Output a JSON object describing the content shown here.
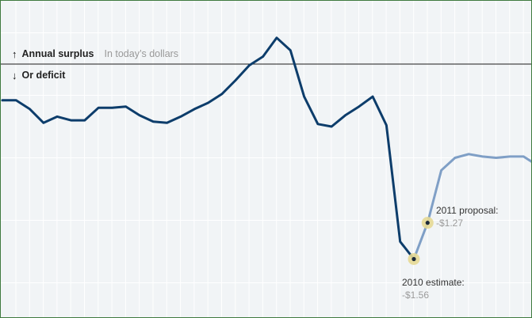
{
  "legend": {
    "up_arrow": "↑",
    "surplus_label": "Annual surplus",
    "units_note": "In today’s dollars",
    "down_arrow": "↓",
    "deficit_label": "Or deficit"
  },
  "chart_data": {
    "type": "line",
    "title": "",
    "xlabel": "",
    "ylabel": "",
    "grid": true,
    "ylim": [
      -1.65,
      0.65
    ],
    "series": [
      {
        "status": "actual",
        "color": "#0d3d6b",
        "x": [
          0,
          1,
          2,
          3,
          4,
          5,
          6,
          7,
          8,
          9,
          10,
          11,
          12,
          13,
          14,
          15,
          16,
          17,
          18,
          19,
          20,
          21,
          22,
          23,
          24,
          25,
          26,
          27,
          28,
          29,
          30
        ],
        "values": [
          -0.29,
          -0.29,
          -0.36,
          -0.47,
          -0.42,
          -0.45,
          -0.45,
          -0.35,
          -0.35,
          -0.34,
          -0.41,
          -0.46,
          -0.47,
          -0.42,
          -0.36,
          -0.31,
          -0.24,
          -0.13,
          -0.01,
          0.06,
          0.21,
          0.11,
          -0.26,
          -0.48,
          -0.5,
          -0.41,
          -0.34,
          -0.26,
          -0.49,
          -1.42,
          -1.56
        ]
      },
      {
        "status": "projected",
        "color": "#7f9fc6",
        "x": [
          30,
          31,
          32,
          33,
          34,
          35,
          36,
          37,
          38,
          39
        ],
        "values": [
          -1.56,
          -1.27,
          -0.85,
          -0.75,
          -0.72,
          -0.74,
          -0.75,
          -0.74,
          -0.74,
          -0.81
        ]
      }
    ],
    "highlights": [
      {
        "x": 30,
        "value": -1.56,
        "label": "2010 estimate:",
        "value_label": "-$1.56"
      },
      {
        "x": 31,
        "value": -1.27,
        "label": "2011 proposal:",
        "value_label": "-$1.27"
      }
    ],
    "colors": {
      "actual": "#0d3d6b",
      "projected": "#7f9fc6",
      "highlight_fill": "#e6d995",
      "zero_line": "#1a1a1a",
      "grid": "#ffffff",
      "background": "#f1f4f6"
    }
  }
}
